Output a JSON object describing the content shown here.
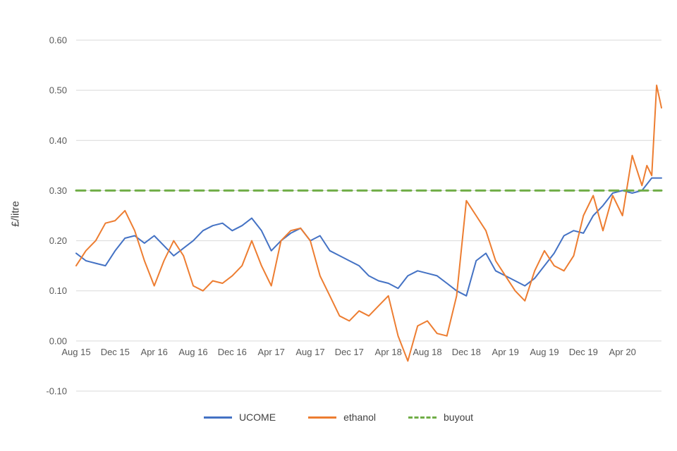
{
  "chart_data": {
    "type": "line",
    "title": "",
    "xlabel": "",
    "ylabel": "£/litre",
    "ylim": [
      -0.1,
      0.6
    ],
    "ytick_step": 0.1,
    "xlim": [
      0,
      60
    ],
    "x_unit": "months since Aug 2015",
    "grid": "horizontal",
    "legend_position": "bottom",
    "axis_text_color": "#595959",
    "gridline_color": "#d9d9d9",
    "x_ticks": [
      {
        "pos": 0,
        "label": "Aug 15"
      },
      {
        "pos": 4,
        "label": "Dec 15"
      },
      {
        "pos": 8,
        "label": "Apr 16"
      },
      {
        "pos": 12,
        "label": "Aug 16"
      },
      {
        "pos": 16,
        "label": "Dec 16"
      },
      {
        "pos": 20,
        "label": "Apr 17"
      },
      {
        "pos": 24,
        "label": "Aug 17"
      },
      {
        "pos": 28,
        "label": "Dec 17"
      },
      {
        "pos": 32,
        "label": "Apr 18"
      },
      {
        "pos": 36,
        "label": "Aug 18"
      },
      {
        "pos": 40,
        "label": "Dec 18"
      },
      {
        "pos": 44,
        "label": "Apr 19"
      },
      {
        "pos": 48,
        "label": "Aug 19"
      },
      {
        "pos": 52,
        "label": "Dec 19"
      },
      {
        "pos": 56,
        "label": "Apr 20"
      }
    ],
    "series": [
      {
        "name": "UCOME",
        "color": "#4472C4",
        "line_style": "solid",
        "x": [
          0,
          1,
          2,
          3,
          4,
          5,
          6,
          7,
          8,
          9,
          10,
          11,
          12,
          13,
          14,
          15,
          16,
          17,
          18,
          19,
          20,
          21,
          22,
          23,
          24,
          25,
          26,
          27,
          28,
          29,
          30,
          31,
          32,
          33,
          34,
          35,
          36,
          37,
          38,
          39,
          40,
          41,
          42,
          43,
          44,
          45,
          46,
          47,
          48,
          49,
          50,
          51,
          52,
          53,
          54,
          55,
          56,
          57,
          58,
          59,
          60
        ],
        "values": [
          0.175,
          0.16,
          0.155,
          0.15,
          0.18,
          0.205,
          0.21,
          0.195,
          0.21,
          0.19,
          0.17,
          0.185,
          0.2,
          0.22,
          0.23,
          0.235,
          0.22,
          0.23,
          0.245,
          0.22,
          0.18,
          0.2,
          0.215,
          0.225,
          0.2,
          0.21,
          0.18,
          0.17,
          0.16,
          0.15,
          0.13,
          0.12,
          0.115,
          0.105,
          0.13,
          0.14,
          0.135,
          0.13,
          0.115,
          0.1,
          0.09,
          0.16,
          0.175,
          0.14,
          0.13,
          0.12,
          0.11,
          0.125,
          0.15,
          0.175,
          0.21,
          0.22,
          0.215,
          0.25,
          0.27,
          0.295,
          0.3,
          0.295,
          0.3,
          0.325,
          0.325
        ]
      },
      {
        "name": "ethanol",
        "color": "#ED7D31",
        "line_style": "solid",
        "x": [
          0,
          1,
          2,
          3,
          4,
          5,
          6,
          7,
          8,
          9,
          10,
          11,
          12,
          13,
          14,
          15,
          16,
          17,
          18,
          19,
          20,
          21,
          22,
          23,
          24,
          25,
          26,
          27,
          28,
          29,
          30,
          31,
          32,
          33,
          34,
          35,
          36,
          37,
          38,
          39,
          40,
          41,
          42,
          43,
          44,
          45,
          46,
          47,
          48,
          49,
          50,
          51,
          52,
          53,
          54,
          55,
          56,
          57,
          58,
          58.5,
          59,
          59.5,
          60
        ],
        "values": [
          0.15,
          0.18,
          0.2,
          0.235,
          0.24,
          0.26,
          0.22,
          0.16,
          0.11,
          0.16,
          0.2,
          0.17,
          0.11,
          0.1,
          0.12,
          0.115,
          0.13,
          0.15,
          0.2,
          0.15,
          0.11,
          0.2,
          0.22,
          0.225,
          0.2,
          0.13,
          0.09,
          0.05,
          0.04,
          0.06,
          0.05,
          0.07,
          0.09,
          0.01,
          -0.04,
          0.03,
          0.04,
          0.015,
          0.01,
          0.09,
          0.28,
          0.25,
          0.22,
          0.16,
          0.13,
          0.1,
          0.08,
          0.14,
          0.18,
          0.15,
          0.14,
          0.17,
          0.25,
          0.29,
          0.22,
          0.29,
          0.25,
          0.37,
          0.31,
          0.35,
          0.33,
          0.51,
          0.465
        ]
      },
      {
        "name": "buyout",
        "color": "#70AD47",
        "line_style": "dashed",
        "x": [
          0,
          60
        ],
        "values": [
          0.3,
          0.3
        ]
      }
    ]
  }
}
